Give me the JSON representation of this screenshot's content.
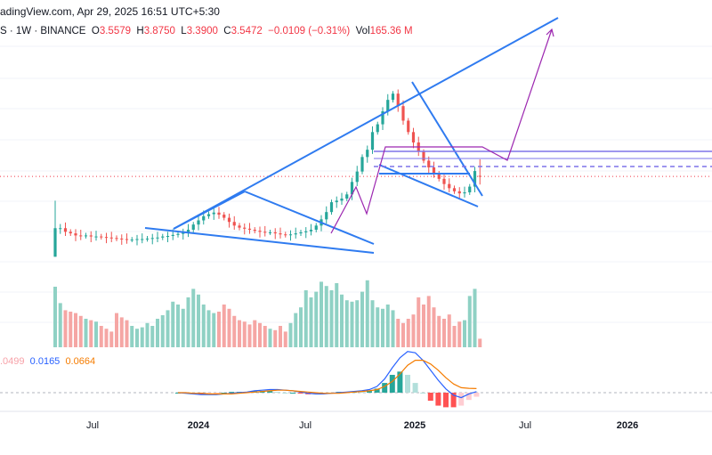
{
  "header": {
    "source_line": "adingView.com, Apr 29, 2025 16:51 UTC+5:30",
    "symbol_line": {
      "prefix": "S · 1W · BINANCE",
      "open_label": "O",
      "open": "3.5579",
      "high_label": "H",
      "high": "3.8750",
      "low_label": "L",
      "low": "3.3900",
      "close_label": "C",
      "close": "3.5472",
      "change": "−0.0109 (−0.31%)",
      "volume_label": "Vol",
      "volume": "165.36 M"
    }
  },
  "macd_legend": {
    "histogram": ".0499",
    "macd": "0.0165",
    "signal": "0.0664"
  },
  "colors": {
    "up": "#26a69a",
    "down": "#ef5350",
    "up_volume": "#8fd1c4",
    "down_volume": "#f5a6a4",
    "trendline": "#2f7bf0",
    "projection": "#9c27b0",
    "level": "#7e74e8",
    "macd_line": "#2962ff",
    "signal_line": "#f57c00"
  },
  "chart_data": {
    "type": "candlestick",
    "timeframe": "1W",
    "exchange": "BINANCE",
    "x_ticks": [
      "Jul",
      "2024",
      "Jul",
      "2025",
      "Jul",
      "2026"
    ],
    "x_ticks_bold": [
      "2024",
      "2025",
      "2026"
    ],
    "last_bar": {
      "open": 3.5579,
      "high": 3.875,
      "low": 3.39,
      "close": 3.5472,
      "volume": "165.36 M"
    },
    "weekly_close": [
      2.55,
      2.55,
      2.48,
      2.45,
      2.41,
      2.4,
      2.41,
      2.39,
      2.39,
      2.38,
      2.37,
      2.36,
      2.35,
      2.34,
      2.33,
      2.33,
      2.34,
      2.34,
      2.35,
      2.36,
      2.37,
      2.39,
      2.4,
      2.42,
      2.44,
      2.46,
      2.52,
      2.62,
      2.7,
      2.78,
      2.82,
      2.85,
      2.81,
      2.75,
      2.67,
      2.6,
      2.56,
      2.54,
      2.52,
      2.5,
      2.48,
      2.47,
      2.47,
      2.45,
      2.43,
      2.42,
      2.43,
      2.45,
      2.47,
      2.49,
      2.52,
      2.6,
      2.72,
      2.86,
      3.05,
      3.08,
      3.12,
      3.2,
      3.44,
      3.64,
      3.92,
      4.06,
      4.4,
      4.55,
      4.8,
      5.02,
      5.14,
      4.9,
      4.62,
      4.4,
      4.2,
      4.02,
      3.85,
      3.72,
      3.6,
      3.5,
      3.4,
      3.32,
      3.26,
      3.22,
      3.24,
      3.35,
      3.65,
      3.5472
    ],
    "weekly_volume": [
      85,
      62,
      52,
      50,
      48,
      44,
      40,
      38,
      36,
      30,
      26,
      22,
      48,
      42,
      38,
      30,
      26,
      28,
      34,
      30,
      40,
      45,
      52,
      64,
      60,
      54,
      70,
      82,
      74,
      60,
      52,
      48,
      50,
      60,
      54,
      44,
      38,
      36,
      32,
      38,
      34,
      30,
      26,
      24,
      30,
      22,
      34,
      48,
      56,
      80,
      70,
      78,
      92,
      86,
      80,
      90,
      74,
      66,
      64,
      66,
      78,
      94,
      66,
      56,
      54,
      60,
      52,
      40,
      34,
      40,
      46,
      70,
      60,
      72,
      56,
      44,
      40,
      46,
      30,
      36,
      38,
      72,
      82,
      12
    ],
    "macd": [
      0.0,
      -0.01,
      -0.02,
      -0.03,
      -0.03,
      -0.03,
      -0.02,
      -0.01,
      0.0,
      0.01,
      0.03,
      0.04,
      0.05,
      0.05,
      0.04,
      0.03,
      0.01,
      -0.01,
      -0.02,
      -0.02,
      -0.01,
      0.0,
      0.01,
      0.02,
      0.03,
      0.05,
      0.1,
      0.22,
      0.4,
      0.56,
      0.66,
      0.64,
      0.52,
      0.36,
      0.2,
      0.06,
      -0.04,
      -0.08,
      -0.02,
      0.0165
    ],
    "signal": [
      0.0,
      0.0,
      -0.01,
      -0.01,
      -0.02,
      -0.02,
      -0.02,
      -0.02,
      -0.01,
      0.0,
      0.01,
      0.02,
      0.03,
      0.04,
      0.04,
      0.03,
      0.02,
      0.01,
      0.0,
      -0.01,
      -0.01,
      -0.01,
      0.0,
      0.01,
      0.02,
      0.03,
      0.05,
      0.1,
      0.18,
      0.3,
      0.44,
      0.52,
      0.52,
      0.46,
      0.36,
      0.24,
      0.14,
      0.08,
      0.07,
      0.0664
    ],
    "histogram_last": -0.0499
  }
}
